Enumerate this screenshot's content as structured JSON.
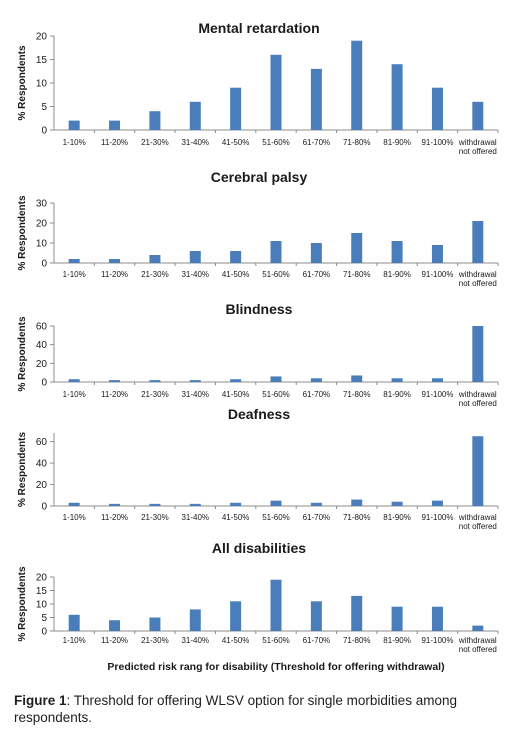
{
  "chart_data": [
    {
      "type": "bar",
      "title": "Mental retardation",
      "ylabel": "% Respondents",
      "xlabel": "",
      "ylim": [
        0,
        20
      ],
      "yticks": [
        0,
        5,
        10,
        15,
        20
      ],
      "categories": [
        "1-10%",
        "11-20%",
        "21-30%",
        "31-40%",
        "41-50%",
        "51-60%",
        "61-70%",
        "71-80%",
        "81-90%",
        "91-100%",
        "withdrawal not offered"
      ],
      "values": [
        2,
        2,
        4,
        6,
        9,
        16,
        13,
        19,
        14,
        9,
        6
      ],
      "grid": false,
      "bar_color": "#4a7ebb"
    },
    {
      "type": "bar",
      "title": "Cerebral palsy",
      "ylabel": "% Respondents",
      "xlabel": "",
      "ylim": [
        0,
        30
      ],
      "yticks": [
        0,
        10,
        20,
        30
      ],
      "categories": [
        "1-10%",
        "11-20%",
        "21-30%",
        "31-40%",
        "41-50%",
        "51-60%",
        "61-70%",
        "71-80%",
        "81-90%",
        "91-100%",
        "withdrawal not offered"
      ],
      "values": [
        2,
        2,
        4,
        6,
        6,
        11,
        10,
        15,
        11,
        9,
        21
      ],
      "grid": false,
      "bar_color": "#4a7ebb"
    },
    {
      "type": "bar",
      "title": "Blindness",
      "ylabel": "% Respondents",
      "xlabel": "",
      "ylim": [
        0,
        60
      ],
      "yticks": [
        0,
        20,
        40,
        60
      ],
      "categories": [
        "1-10%",
        "11-20%",
        "21-30%",
        "31-40%",
        "41-50%",
        "51-60%",
        "61-70%",
        "71-80%",
        "81-90%",
        "91-100%",
        "withdrawal not offered"
      ],
      "values": [
        3,
        2,
        2,
        2,
        3,
        6,
        4,
        7,
        4,
        4,
        60
      ],
      "grid": false,
      "bar_color": "#4a7ebb"
    },
    {
      "type": "bar",
      "title": "Deafness",
      "ylabel": "% Respondents",
      "xlabel": "",
      "ylim": [
        0,
        68
      ],
      "yticks": [
        0,
        20,
        40,
        60
      ],
      "categories": [
        "1-10%",
        "11-20%",
        "21-30%",
        "31-40%",
        "41-50%",
        "51-60%",
        "61-70%",
        "71-80%",
        "81-90%",
        "91-100%",
        "withdrawal not offered"
      ],
      "values": [
        3,
        2,
        2,
        2,
        3,
        5,
        3,
        6,
        4,
        5,
        65
      ],
      "grid": false,
      "bar_color": "#4a7ebb"
    },
    {
      "type": "bar",
      "title": "All disabilities",
      "ylabel": "% Respondents",
      "xlabel": "Predicted risk rang for disability (Threshold for offering withdrawal)",
      "ylim": [
        0,
        20
      ],
      "yticks": [
        0,
        5,
        10,
        15,
        20
      ],
      "categories": [
        "1-10%",
        "11-20%",
        "21-30%",
        "31-40%",
        "41-50%",
        "51-60%",
        "61-70%",
        "71-80%",
        "81-90%",
        "91-100%",
        "withdrawal not offered"
      ],
      "values": [
        6,
        4,
        5,
        8,
        11,
        19,
        11,
        13,
        9,
        9,
        2
      ],
      "grid": false,
      "bar_color": "#4a7ebb"
    }
  ],
  "caption": {
    "label": "Figure 1",
    "text": ": Threshold for offering WLSV option for single morbidities among respondents."
  }
}
